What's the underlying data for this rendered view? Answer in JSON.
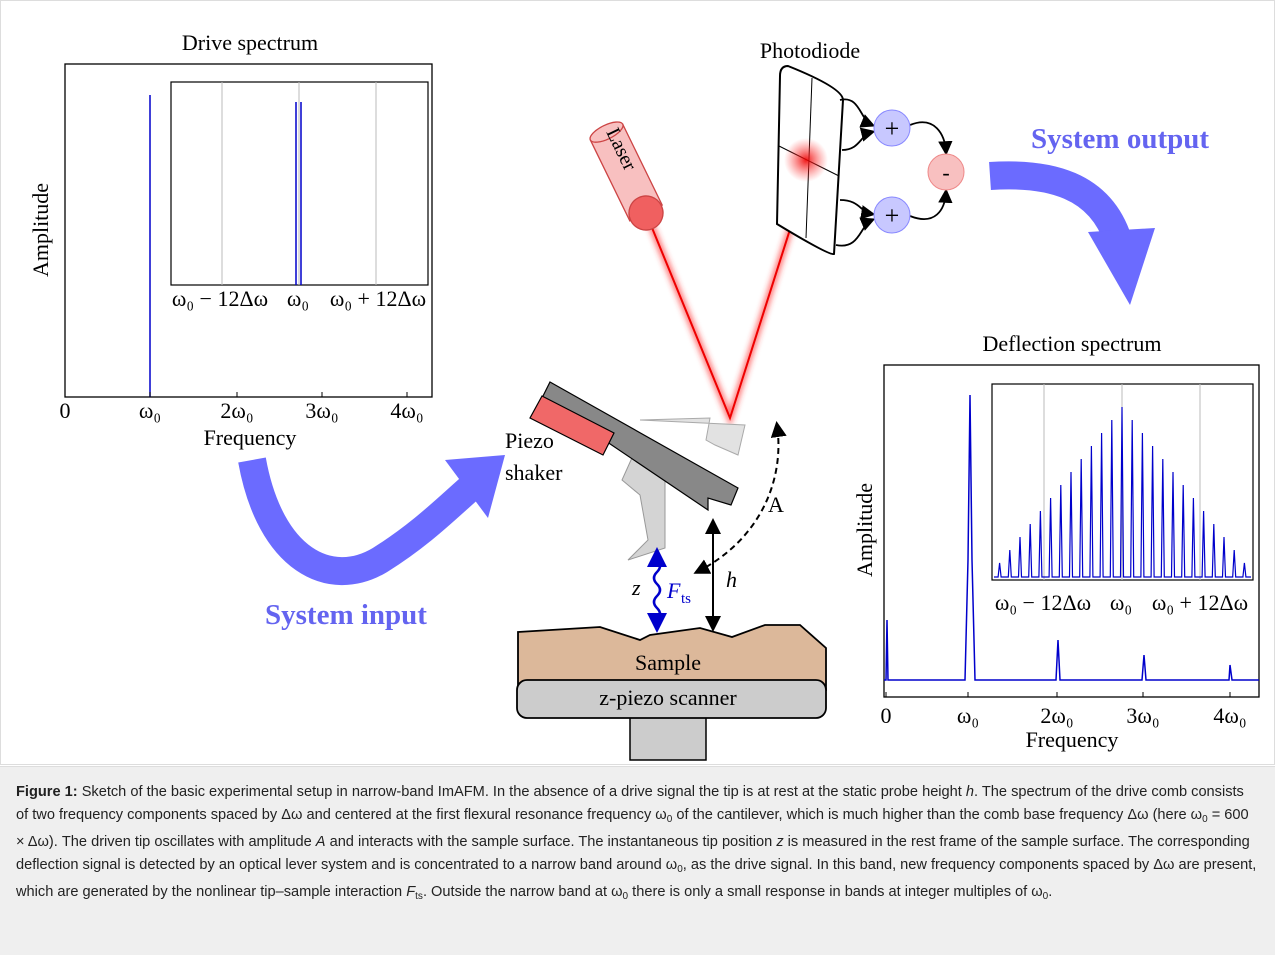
{
  "figure": {
    "drive_spectrum": {
      "title": "Drive spectrum",
      "y_label": "Amplitude",
      "x_label": "Frequency",
      "x_ticks": [
        "0",
        "ω₀",
        "2ω₀",
        "3ω₀",
        "4ω₀"
      ],
      "inset_ticks": [
        "ω₀ − 12Δω",
        "ω₀",
        "ω₀ + 12Δω"
      ]
    },
    "deflection_spectrum": {
      "title": "Deflection spectrum",
      "y_label": "Amplitude",
      "x_label": "Frequency",
      "x_ticks": [
        "0",
        "ω₀",
        "2ω₀",
        "3ω₀",
        "4ω₀"
      ],
      "inset_ticks": [
        "ω₀ − 12Δω",
        "ω₀",
        "ω₀ + 12Δω"
      ]
    },
    "labels": {
      "photodiode": "Photodiode",
      "laser": "Laser",
      "plus": "+",
      "minus": "-",
      "system_output": "System output",
      "system_input": "System input",
      "piezo_shaker": [
        "Piezo",
        "shaker"
      ],
      "amplitude": "A",
      "height": "h",
      "position": "z",
      "force": "F",
      "force_sub": "ts",
      "sample": "Sample",
      "scanner": "z-piezo scanner"
    }
  },
  "caption": {
    "label": "Figure 1:",
    "parts": [
      "Sketch of the basic experimental setup in narrow-band ImAFM. In the absence of a drive signal the tip is at rest at the static probe height",
      "h",
      ". The spectrum of the drive comb consists of two frequency components spaced by Δω and centered at the first flexural resonance frequency ω",
      "0",
      "of the cantilever, which is much higher than the comb base frequency Δω (here ω",
      "0",
      "= 600 × Δω). The driven tip oscillates with amplitude",
      "A",
      "and interacts with the sample surface. The instantaneous tip position",
      "z",
      "is measured in the rest frame of the sample surface. The corresponding deflection signal is detected by an optical lever system and is concentrated to a narrow band around ω",
      "0",
      ", as the drive signal. In this band, new frequency components spaced by Δω are present, which are generated by the nonlinear tip–sample interaction",
      "F",
      "ts",
      ". Outside the narrow band at ω",
      "0",
      "there is only a small response in bands at integer multiples of ω",
      "0",
      "."
    ]
  }
}
